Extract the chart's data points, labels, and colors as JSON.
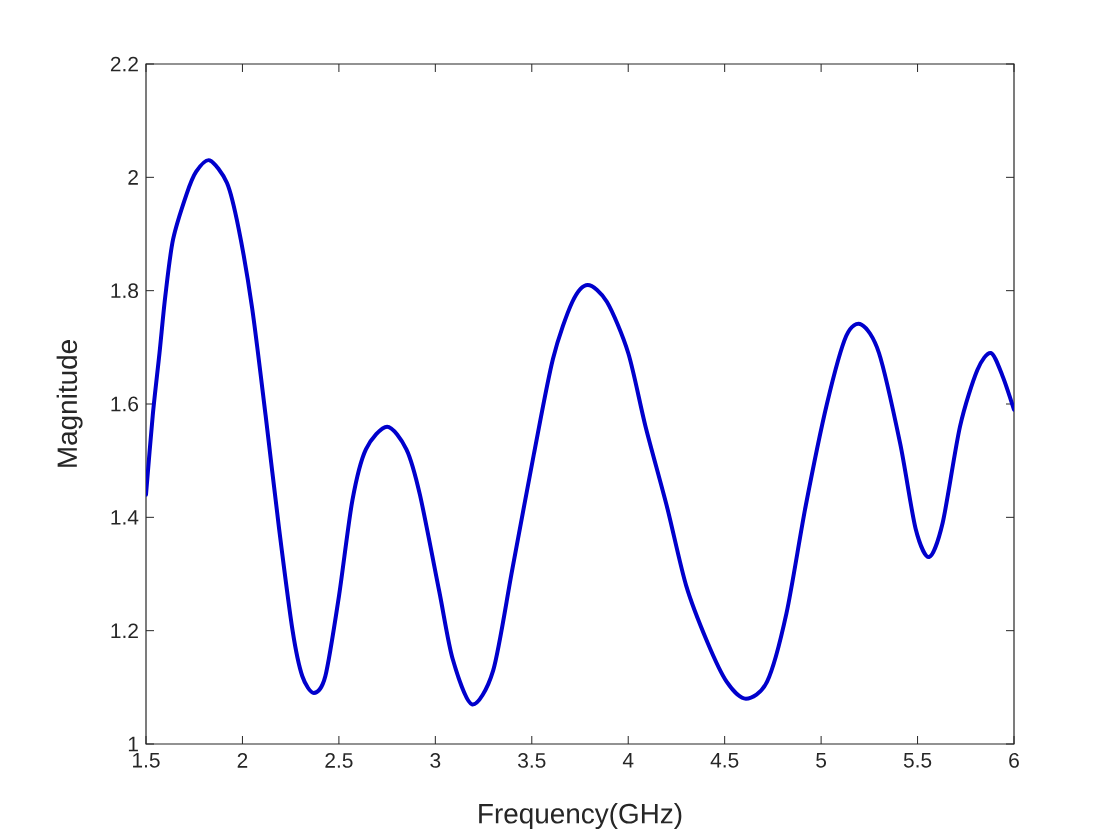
{
  "chart_data": {
    "type": "line",
    "xlabel": "Frequency(GHz)",
    "ylabel": "Magnitude",
    "x": [
      1.5,
      1.535,
      1.57,
      1.6,
      1.64,
      1.71,
      1.76,
      1.83,
      1.92,
      1.98,
      2.05,
      2.12,
      2.19,
      2.26,
      2.31,
      2.37,
      2.43,
      2.5,
      2.57,
      2.64,
      2.75,
      2.85,
      2.92,
      3.02,
      3.09,
      3.19,
      3.3,
      3.4,
      3.51,
      3.61,
      3.71,
      3.79,
      3.89,
      4.0,
      4.09,
      4.2,
      4.3,
      4.41,
      4.51,
      4.61,
      4.72,
      4.82,
      4.92,
      5.03,
      5.13,
      5.21,
      5.3,
      5.41,
      5.49,
      5.56,
      5.63,
      5.72,
      5.81,
      5.88,
      5.94,
      6.0
    ],
    "values": [
      1.44,
      1.58,
      1.69,
      1.79,
      1.89,
      1.97,
      2.01,
      2.03,
      1.99,
      1.91,
      1.77,
      1.58,
      1.38,
      1.2,
      1.12,
      1.09,
      1.12,
      1.26,
      1.43,
      1.52,
      1.56,
      1.52,
      1.44,
      1.27,
      1.15,
      1.07,
      1.13,
      1.31,
      1.51,
      1.68,
      1.78,
      1.81,
      1.78,
      1.69,
      1.56,
      1.42,
      1.28,
      1.18,
      1.11,
      1.08,
      1.11,
      1.23,
      1.42,
      1.6,
      1.72,
      1.74,
      1.69,
      1.53,
      1.38,
      1.33,
      1.39,
      1.56,
      1.66,
      1.69,
      1.65,
      1.59
    ],
    "color": "#0000cc",
    "line_style": "solid",
    "xlim": [
      1.5,
      6
    ],
    "ylim": [
      1,
      2.2
    ],
    "xticks": [
      1.5,
      2,
      2.5,
      3,
      3.5,
      4,
      4.5,
      5,
      5.5,
      6
    ],
    "yticks": [
      1,
      1.2,
      1.4,
      1.6,
      1.8,
      2,
      2.2
    ]
  }
}
